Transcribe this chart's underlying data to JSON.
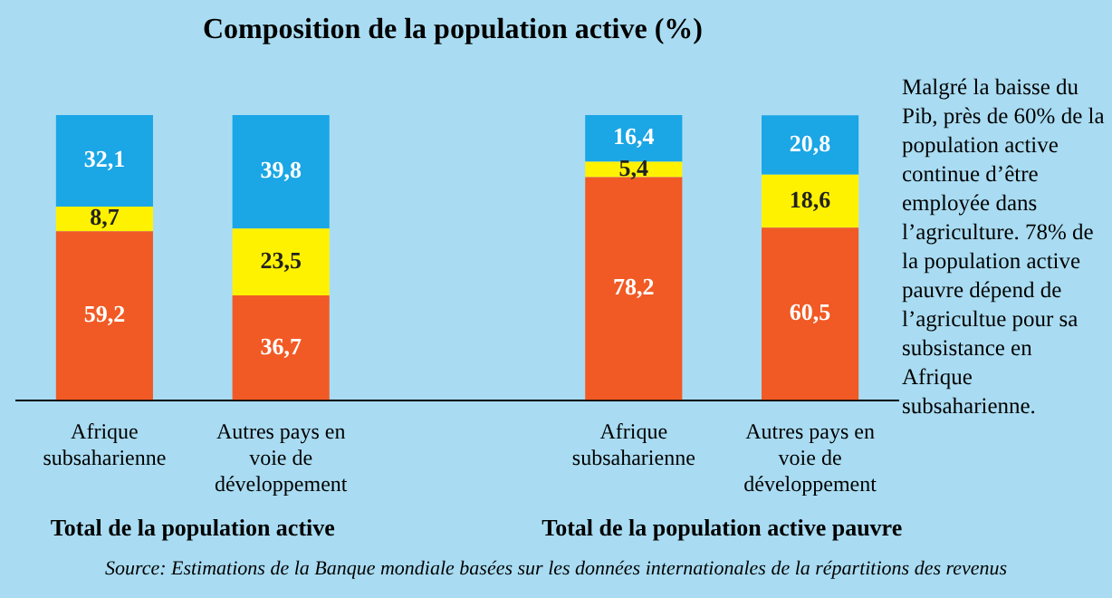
{
  "chart_data": {
    "type": "bar",
    "title": "Composition de la population active (%)",
    "stacked": true,
    "categories": [
      "Afrique subsaharienne",
      "Autres pays en voie de développement",
      null,
      "Afrique subsaharienne",
      "Autres pays en voie de développement"
    ],
    "series": [
      {
        "color": "#f15a24",
        "values": [
          59.2,
          36.7,
          null,
          78.2,
          60.5
        ],
        "value_labels": [
          "59,2",
          "36,7",
          null,
          "78,2",
          "60,5"
        ]
      },
      {
        "color": "#fff200",
        "values": [
          8.7,
          23.5,
          null,
          5.4,
          18.6
        ],
        "value_labels": [
          "8,7",
          "23,5",
          null,
          "5,4",
          "18,6"
        ]
      },
      {
        "color": "#1ba6e6",
        "values": [
          32.1,
          39.8,
          null,
          16.4,
          20.8
        ],
        "value_labels": [
          "32,1",
          "39,8",
          null,
          "16,4",
          "20,8"
        ]
      }
    ],
    "annotations": [
      "Total de la population active",
      "Total de la population active pauvre",
      "Malgré la baisse du Pib, près de 60% de la population active continue d’être employée dans l’agriculture. 78% de la population active pauvre dépend de l’agricultue pour sa subsistance en Afrique subsaharienne.",
      "Source: Estimations de la Banque mondiale basées sur les données internationales de la répartitions des revenus"
    ],
    "legend": false,
    "grid": false
  }
}
